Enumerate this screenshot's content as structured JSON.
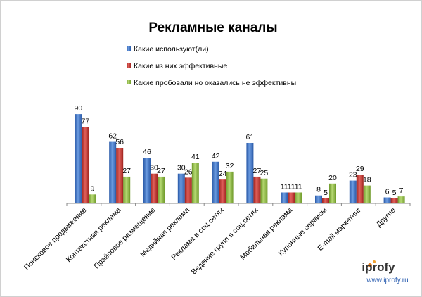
{
  "colors": {
    "used": "#3a6fc1",
    "effective": "#c0312c",
    "tried": "#8bb63e",
    "axis": "#888888"
  },
  "logo": {
    "brand": "iprofy",
    "url": "www.iprofy.ru"
  },
  "chart_data": {
    "type": "bar",
    "title": "Рекламные каналы",
    "xlabel": "",
    "ylabel": "",
    "ylim": [
      0,
      100
    ],
    "grid": false,
    "legend_position": "top-center",
    "categories": [
      "Поисковое продвижение",
      "Контекстная реклама",
      "Прайсовое размещение",
      "Медийная реклама",
      "Реклама в соц.сетях",
      "Ведение групп в соц.сетях",
      "Мобильная реклама",
      "Купонные сервисы",
      "E-mail маркетинг",
      "Другие"
    ],
    "series": [
      {
        "name": "Какие используют(ли)",
        "color": "#3a6fc1",
        "values": [
          90,
          62,
          46,
          30,
          42,
          61,
          11,
          8,
          23,
          6
        ]
      },
      {
        "name": "Какие из них эффективные",
        "color": "#c0312c",
        "values": [
          77,
          56,
          30,
          26,
          24,
          27,
          11,
          5,
          29,
          5
        ]
      },
      {
        "name": "Какие пробовали но оказались не эффективны",
        "color": "#8bb63e",
        "values": [
          9,
          27,
          27,
          41,
          32,
          25,
          11,
          20,
          18,
          7
        ]
      }
    ]
  }
}
